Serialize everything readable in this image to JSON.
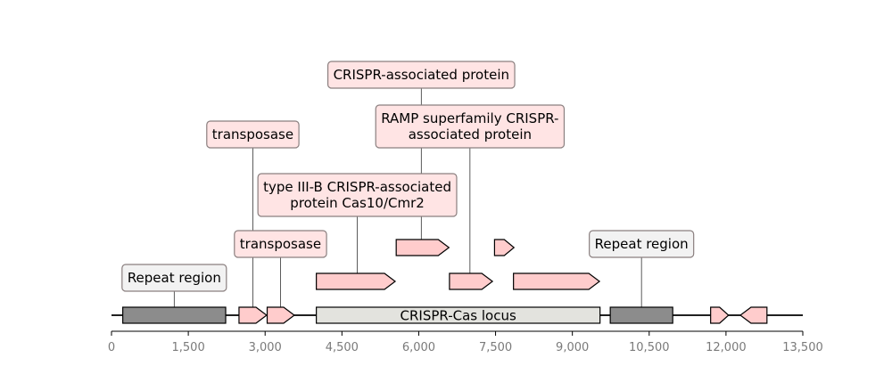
{
  "axis": {
    "min": 0,
    "max": 13500,
    "ticks": [
      {
        "value": 0,
        "label": "0"
      },
      {
        "value": 1500,
        "label": "1,500"
      },
      {
        "value": 3000,
        "label": "3,000"
      },
      {
        "value": 4500,
        "label": "4,500"
      },
      {
        "value": 6000,
        "label": "6,000"
      },
      {
        "value": 7500,
        "label": "7,500"
      },
      {
        "value": 9000,
        "label": "9,000"
      },
      {
        "value": 10500,
        "label": "10,500"
      },
      {
        "value": 12000,
        "label": "12,000"
      },
      {
        "value": 13500,
        "label": "13,500"
      }
    ]
  },
  "colors": {
    "gene_fill": "#ffcccc",
    "repeat_fill": "#8c8c8c",
    "locus_fill": "#e3e3de",
    "label_bg_pink": "#ffe4e4",
    "label_bg_gray": "#f2f2f2",
    "label_border": "#8a7f7f"
  },
  "features": [
    {
      "id": "repeat-1",
      "kind": "repeat",
      "start": 220,
      "end": 2230,
      "track": 0
    },
    {
      "id": "gene-1",
      "kind": "gene",
      "start": 2490,
      "end": 3030,
      "strand": 1,
      "track": 0
    },
    {
      "id": "gene-2",
      "kind": "gene",
      "start": 3040,
      "end": 3570,
      "strand": 1,
      "track": 0
    },
    {
      "id": "locus",
      "kind": "locus",
      "start": 4000,
      "end": 9540,
      "track": 0,
      "label": "CRISPR-Cas locus"
    },
    {
      "id": "repeat-2",
      "kind": "repeat",
      "start": 9740,
      "end": 10960,
      "track": 0
    },
    {
      "id": "gene-3",
      "kind": "gene",
      "start": 11700,
      "end": 12050,
      "strand": 1,
      "track": 0
    },
    {
      "id": "gene-4",
      "kind": "gene",
      "start": 12280,
      "end": 12800,
      "strand": -1,
      "track": 0
    },
    {
      "id": "gene-5",
      "kind": "gene",
      "start": 4000,
      "end": 5540,
      "strand": 1,
      "track": 1
    },
    {
      "id": "gene-6",
      "kind": "gene",
      "start": 6600,
      "end": 7440,
      "strand": 1,
      "track": 1
    },
    {
      "id": "gene-7",
      "kind": "gene",
      "start": 7850,
      "end": 9530,
      "strand": 1,
      "track": 1
    },
    {
      "id": "gene-8",
      "kind": "gene",
      "start": 5560,
      "end": 6590,
      "strand": 1,
      "track": 2
    },
    {
      "id": "gene-9",
      "kind": "gene",
      "start": 7480,
      "end": 7860,
      "strand": 1,
      "track": 2
    }
  ],
  "annotations": [
    {
      "text": "Repeat region",
      "at": 1225,
      "track": 0,
      "level": 0,
      "style": "gray"
    },
    {
      "text": "transposase",
      "at": 3300,
      "track": 0,
      "level": 1,
      "style": "pink"
    },
    {
      "text": "transposase",
      "at": 2760,
      "track": 0,
      "level": 3,
      "style": "pink"
    },
    {
      "text": "type III-B CRISPR-associated\nprotein Cas10/Cmr2",
      "at": 4800,
      "track": 1,
      "level": 2,
      "style": "pink"
    },
    {
      "text": "RAMP superfamily CRISPR-\nassociated protein",
      "at": 7000,
      "track": 1,
      "level": 3,
      "style": "pink"
    },
    {
      "text": "CRISPR-associated protein",
      "at": 6050,
      "track": 2,
      "level": 4,
      "style": "pink"
    },
    {
      "text": "Repeat region",
      "at": 10350,
      "track": 0,
      "level": 1,
      "style": "gray"
    }
  ]
}
